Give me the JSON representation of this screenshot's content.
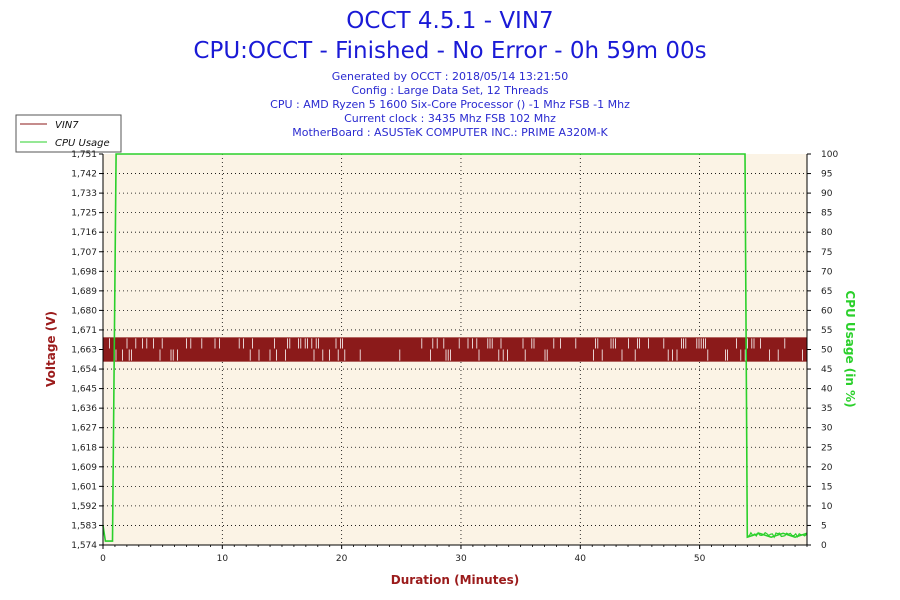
{
  "header": {
    "title": "OCCT 4.5.1 - VIN7",
    "subtitle": "CPU:OCCT - Finished - No Error - 0h 59m 00s",
    "info_lines": [
      "Generated by OCCT : 2018/05/14 13:21:50",
      "Config : Large Data Set, 12 Threads",
      "CPU : AMD Ryzen 5 1600 Six-Core Processor () -1 Mhz FSB -1 Mhz",
      "Current clock : 3435 Mhz FSB 102 Mhz",
      "MotherBoard : ASUSTeK COMPUTER INC.: PRIME A320M-K"
    ]
  },
  "legend": {
    "items": [
      {
        "label": "VIN7",
        "color": "#8b1a1a"
      },
      {
        "label": "CPU Usage",
        "color": "#2bd02b"
      }
    ]
  },
  "colors": {
    "plot_bg": "#fbf3e5",
    "vin7": "#8b1a1a",
    "cpu": "#2bd02b",
    "grid": "#000000"
  },
  "chart_data": {
    "type": "line",
    "xlabel": "Duration (Minutes)",
    "ylabel_left": "Voltage (V)",
    "ylabel_right": "CPU Usage (in %)",
    "xlim": [
      0,
      59
    ],
    "ylim_left": [
      1.574,
      1.751
    ],
    "ylim_right": [
      0,
      100
    ],
    "x_ticks": [
      "0",
      "10",
      "20",
      "30",
      "40",
      "50"
    ],
    "left_ticks": [
      "1,751",
      "1,742",
      "1,733",
      "1,725",
      "1,716",
      "1,707",
      "1,698",
      "1,689",
      "1,680",
      "1,671",
      "1,663",
      "1,654",
      "1,645",
      "1,636",
      "1,627",
      "1,618",
      "1,609",
      "1,601",
      "1,592",
      "1,583",
      "1,574"
    ],
    "right_ticks": [
      "100",
      "95",
      "90",
      "85",
      "80",
      "75",
      "70",
      "65",
      "60",
      "55",
      "50",
      "45",
      "40",
      "35",
      "30",
      "25",
      "20",
      "15",
      "10",
      "5",
      "0"
    ],
    "grid": true,
    "legend_position": "top-left",
    "series": [
      {
        "name": "VIN7",
        "axis": "left",
        "style": "noisy band",
        "band_low": 1.657,
        "band_high": 1.668,
        "x": [
          0,
          59
        ]
      },
      {
        "name": "CPU Usage",
        "axis": "right",
        "points": [
          [
            0,
            5
          ],
          [
            0.2,
            1
          ],
          [
            0.8,
            1
          ],
          [
            1.1,
            100
          ],
          [
            53.8,
            100
          ],
          [
            54.0,
            2
          ],
          [
            55,
            3
          ],
          [
            56,
            2
          ],
          [
            57,
            3
          ],
          [
            58,
            2
          ],
          [
            59,
            3
          ]
        ]
      }
    ]
  }
}
